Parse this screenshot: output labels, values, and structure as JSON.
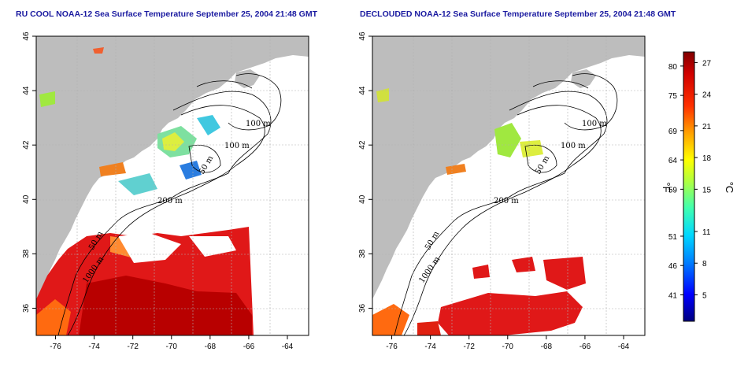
{
  "titles": {
    "left": "RU COOL NOAA-12 Sea Surface Temperature September 25, 2004 21:48 GMT",
    "right": "DECLOUDED NOAA-12 Sea Surface Temperature September 25, 2004 21:48 GMT"
  },
  "axes": {
    "lon_ticks": [
      "-76",
      "-74",
      "-72",
      "-70",
      "-68",
      "-66",
      "-64"
    ],
    "lat_ticks": [
      "46",
      "44",
      "42",
      "40",
      "38",
      "36"
    ],
    "lon_range": [
      -77.0,
      -62.9
    ],
    "lat_range": [
      35.0,
      46.0
    ]
  },
  "contour_labels": [
    "100 m",
    "100 m",
    "50 m",
    "200 m",
    "50 m",
    "1000 m"
  ],
  "colorbar": {
    "fahrenheit_ticks": [
      "80",
      "75",
      "69",
      "64",
      "59",
      "51",
      "46",
      "41"
    ],
    "fahrenheit_values": [
      80,
      75,
      69,
      64,
      59,
      51,
      46,
      41
    ],
    "celsius_ticks": [
      "27",
      "24",
      "21",
      "18",
      "15",
      "11",
      "8",
      "5"
    ],
    "celsius_values": [
      27,
      24,
      21,
      18,
      15,
      11,
      8,
      5
    ],
    "celsius_range": [
      2.5,
      28
    ],
    "fahrenheit_unit": "°F",
    "celsius_unit": "°C",
    "colors": [
      "#000080",
      "#0000ff",
      "#0080ff",
      "#00d8ff",
      "#40ffb0",
      "#b0ff40",
      "#ffff00",
      "#ffa000",
      "#ff3000",
      "#d00000",
      "#800000"
    ]
  },
  "map_colors": {
    "land": "#bdbdbd",
    "ocean": "#ffffff",
    "grid": "#b0b0b0",
    "contour": "#000000"
  }
}
